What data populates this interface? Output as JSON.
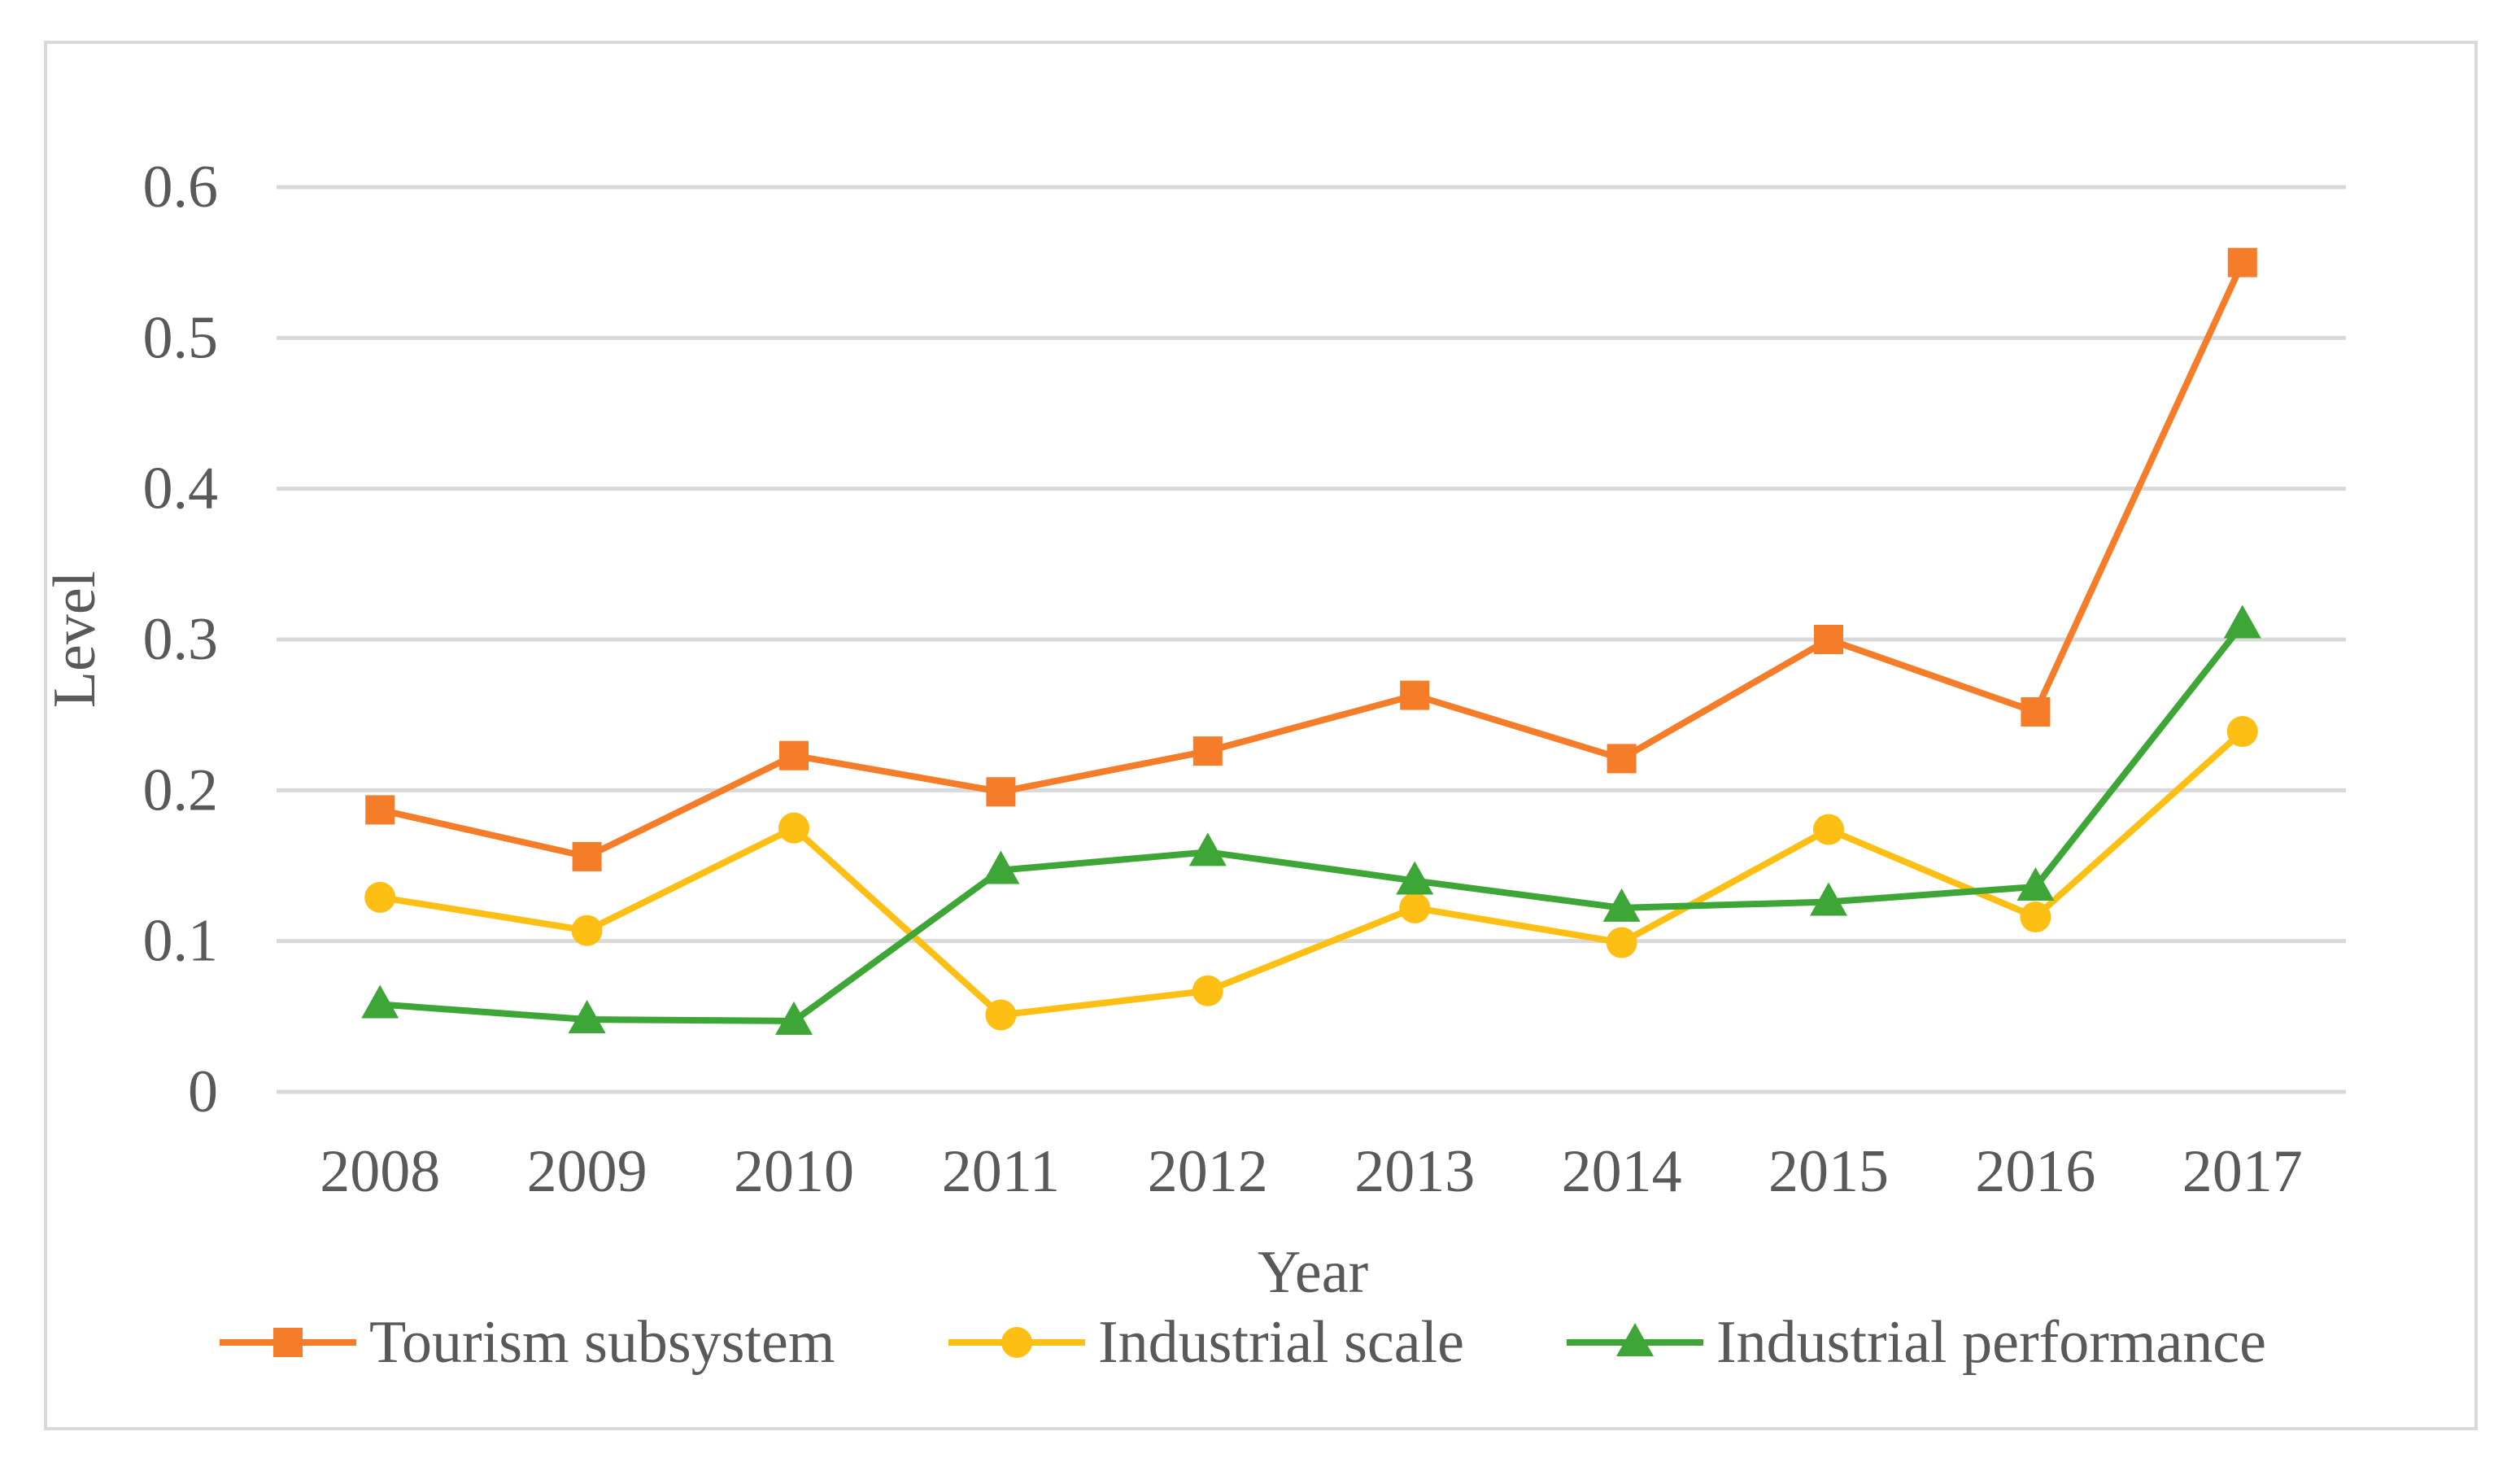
{
  "chart_data": {
    "type": "line",
    "title": "",
    "xlabel": "Year",
    "ylabel": "Level",
    "categories": [
      "2008",
      "2009",
      "2010",
      "2011",
      "2012",
      "2013",
      "2014",
      "2015",
      "2016",
      "2017"
    ],
    "ylim": [
      0,
      0.6
    ],
    "yticks": [
      "0",
      "0.1",
      "0.2",
      "0.3",
      "0.4",
      "0.5",
      "0.6"
    ],
    "grid": true,
    "legend_position": "bottom",
    "series": [
      {
        "name": "Tourism subsystem",
        "color": "#f57c28",
        "marker": "square",
        "values": [
          0.187,
          0.156,
          0.223,
          0.199,
          0.226,
          0.263,
          0.221,
          0.3,
          0.252,
          0.55
        ]
      },
      {
        "name": "Industrial scale",
        "color": "#fdbf14",
        "marker": "circle",
        "values": [
          0.129,
          0.107,
          0.175,
          0.051,
          0.067,
          0.122,
          0.099,
          0.174,
          0.116,
          0.239
        ]
      },
      {
        "name": "Industrial performance",
        "color": "#3ea637",
        "marker": "triangle",
        "values": [
          0.058,
          0.048,
          0.047,
          0.147,
          0.159,
          0.14,
          0.122,
          0.126,
          0.136,
          0.31
        ]
      }
    ]
  }
}
